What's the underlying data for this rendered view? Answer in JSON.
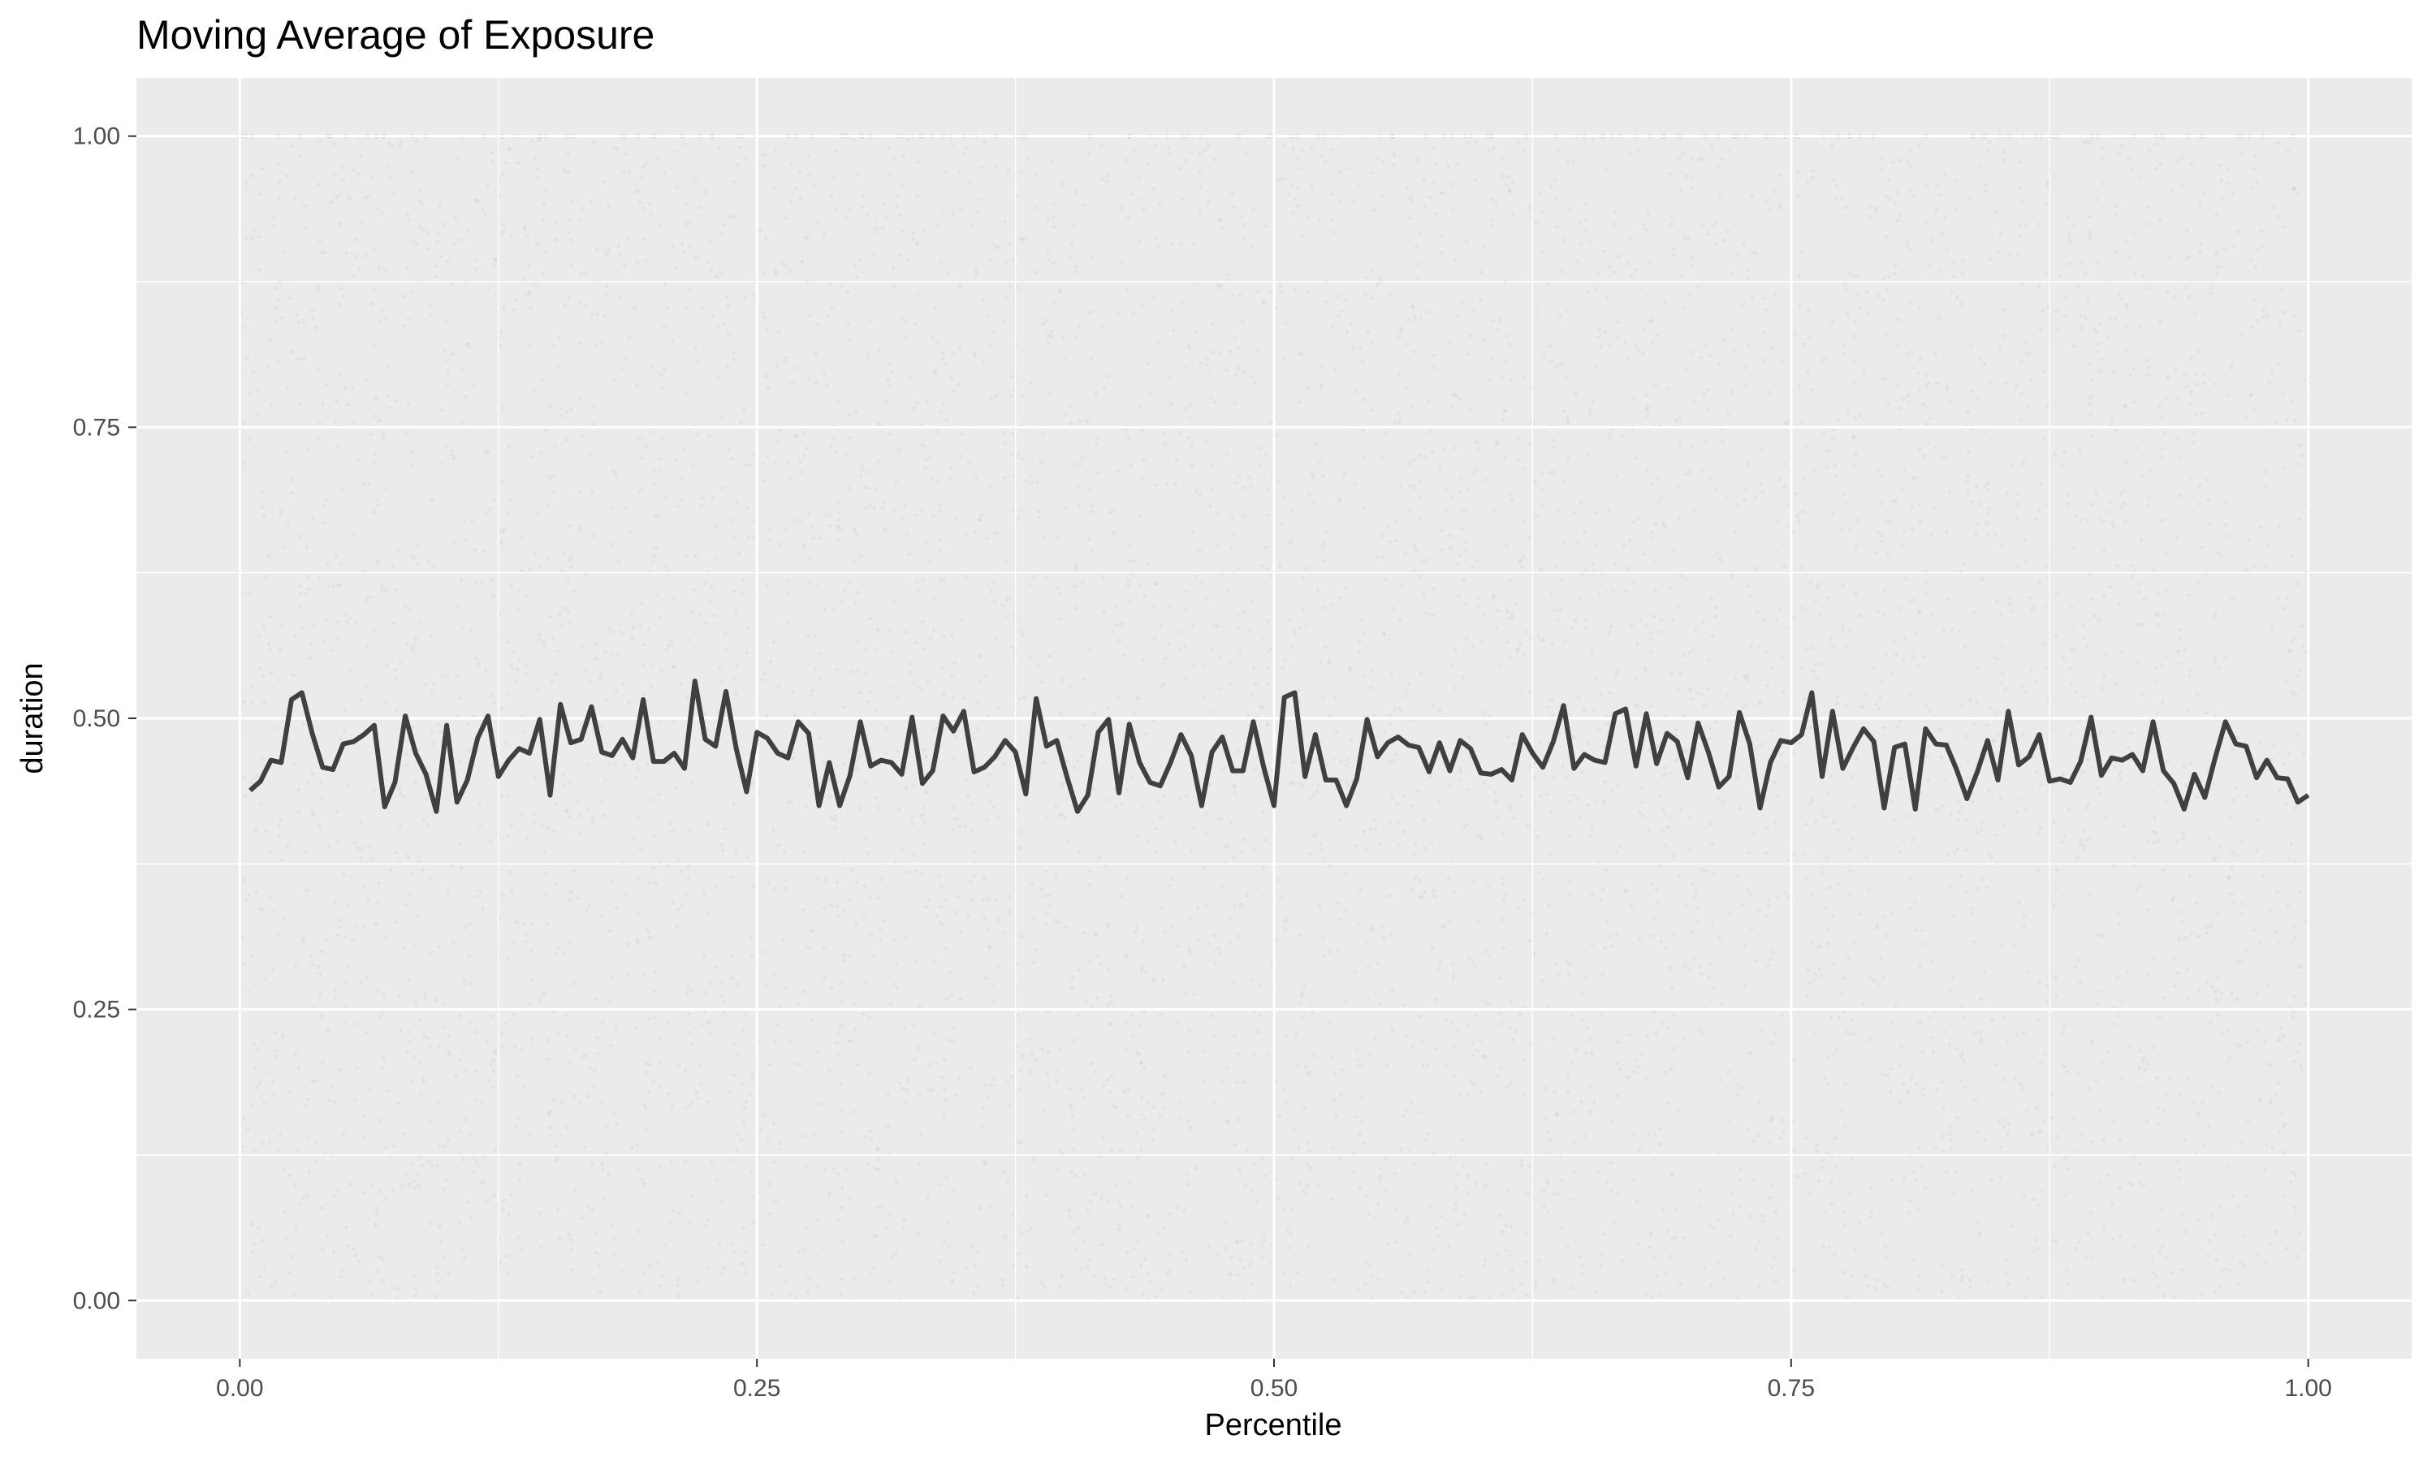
{
  "chart_data": {
    "type": "line",
    "title": "Moving Average of Exposure",
    "xlabel": "Percentile",
    "ylabel": "duration",
    "xlim": [
      -0.05,
      1.05
    ],
    "ylim": [
      -0.05,
      1.05
    ],
    "x_ticks": [
      0,
      0.25,
      0.5,
      0.75,
      1
    ],
    "x_tick_labels": [
      "0.00",
      "0.25",
      "0.50",
      "0.75",
      "1.00"
    ],
    "y_ticks": [
      0,
      0.25,
      0.5,
      0.75,
      1
    ],
    "y_tick_labels": [
      "0.00",
      "0.25",
      "0.50",
      "0.75",
      "1.00"
    ],
    "grid": true,
    "background": "#ebebeb",
    "grid_color": "#ffffff",
    "line_color": "#404040",
    "scatter_color": "#cccccc",
    "series": [
      {
        "x": [
          0.005,
          0.01,
          0.015,
          0.02,
          0.025,
          0.03,
          0.035,
          0.04,
          0.045,
          0.05,
          0.055,
          0.06,
          0.065,
          0.07,
          0.075,
          0.08,
          0.085,
          0.09,
          0.095,
          0.1,
          0.105,
          0.11,
          0.115,
          0.12,
          0.125,
          0.13,
          0.135,
          0.14,
          0.145,
          0.15,
          0.155,
          0.16,
          0.165,
          0.17,
          0.175,
          0.18,
          0.185,
          0.19,
          0.195,
          0.2,
          0.205,
          0.21,
          0.215,
          0.22,
          0.225,
          0.23,
          0.235,
          0.24,
          0.245,
          0.25,
          0.255,
          0.26,
          0.265,
          0.27,
          0.275,
          0.28,
          0.285,
          0.29,
          0.295,
          0.3,
          0.305,
          0.31,
          0.315,
          0.32,
          0.325,
          0.33,
          0.335,
          0.34,
          0.345,
          0.35,
          0.355,
          0.36,
          0.365,
          0.37,
          0.375,
          0.38,
          0.385,
          0.39,
          0.395,
          0.4,
          0.405,
          0.41,
          0.415,
          0.42,
          0.425,
          0.43,
          0.435,
          0.44,
          0.445,
          0.45,
          0.455,
          0.46,
          0.465,
          0.47,
          0.475,
          0.48,
          0.485,
          0.49,
          0.495,
          0.5,
          0.505,
          0.51,
          0.515,
          0.52,
          0.525,
          0.53,
          0.535,
          0.54,
          0.545,
          0.55,
          0.555,
          0.56,
          0.565,
          0.57,
          0.575,
          0.58,
          0.585,
          0.59,
          0.595,
          0.6,
          0.605,
          0.61,
          0.615,
          0.62,
          0.625,
          0.63,
          0.635,
          0.64,
          0.645,
          0.65,
          0.655,
          0.66,
          0.665,
          0.67,
          0.675,
          0.68,
          0.685,
          0.69,
          0.695,
          0.7,
          0.705,
          0.71,
          0.715,
          0.72,
          0.725,
          0.73,
          0.735,
          0.74,
          0.745,
          0.75,
          0.755,
          0.76,
          0.765,
          0.77,
          0.775,
          0.78,
          0.785,
          0.79,
          0.795,
          0.8,
          0.805,
          0.81,
          0.815,
          0.82,
          0.825,
          0.83,
          0.835,
          0.84,
          0.845,
          0.85,
          0.855,
          0.86,
          0.865,
          0.87,
          0.875,
          0.88,
          0.885,
          0.89,
          0.895,
          0.9,
          0.905,
          0.91,
          0.915,
          0.92,
          0.925,
          0.93,
          0.935,
          0.94,
          0.945,
          0.95,
          0.955,
          0.96,
          0.965,
          0.97,
          0.975,
          0.98,
          0.985,
          0.99,
          0.995,
          1.0
        ],
        "y": [
          0.438,
          0.446,
          0.464,
          0.462,
          0.516,
          0.522,
          0.487,
          0.458,
          0.456,
          0.478,
          0.48,
          0.486,
          0.494,
          0.424,
          0.445,
          0.502,
          0.47,
          0.452,
          0.42,
          0.494,
          0.428,
          0.447,
          0.483,
          0.502,
          0.45,
          0.464,
          0.474,
          0.47,
          0.499,
          0.434,
          0.512,
          0.479,
          0.482,
          0.51,
          0.471,
          0.468,
          0.482,
          0.466,
          0.516,
          0.463,
          0.463,
          0.47,
          0.457,
          0.532,
          0.482,
          0.476,
          0.523,
          0.474,
          0.437,
          0.488,
          0.483,
          0.47,
          0.466,
          0.497,
          0.487,
          0.425,
          0.462,
          0.425,
          0.451,
          0.497,
          0.459,
          0.464,
          0.462,
          0.452,
          0.501,
          0.444,
          0.455,
          0.502,
          0.489,
          0.506,
          0.454,
          0.458,
          0.467,
          0.481,
          0.471,
          0.435,
          0.517,
          0.476,
          0.481,
          0.449,
          0.42,
          0.434,
          0.488,
          0.499,
          0.436,
          0.495,
          0.462,
          0.445,
          0.442,
          0.462,
          0.486,
          0.468,
          0.425,
          0.471,
          0.484,
          0.455,
          0.455,
          0.497,
          0.458,
          0.425,
          0.518,
          0.522,
          0.45,
          0.486,
          0.447,
          0.447,
          0.425,
          0.448,
          0.499,
          0.467,
          0.479,
          0.484,
          0.477,
          0.475,
          0.454,
          0.479,
          0.455,
          0.481,
          0.474,
          0.453,
          0.452,
          0.456,
          0.447,
          0.486,
          0.47,
          0.458,
          0.48,
          0.511,
          0.457,
          0.469,
          0.464,
          0.462,
          0.504,
          0.508,
          0.459,
          0.504,
          0.461,
          0.487,
          0.48,
          0.449,
          0.496,
          0.471,
          0.441,
          0.45,
          0.505,
          0.478,
          0.423,
          0.462,
          0.481,
          0.479,
          0.486,
          0.522,
          0.45,
          0.506,
          0.457,
          0.475,
          0.491,
          0.48,
          0.423,
          0.475,
          0.478,
          0.422,
          0.491,
          0.478,
          0.477,
          0.456,
          0.431,
          0.454,
          0.481,
          0.447,
          0.506,
          0.46,
          0.467,
          0.486,
          0.446,
          0.448,
          0.445,
          0.463,
          0.501,
          0.451,
          0.466,
          0.464,
          0.469,
          0.455,
          0.497,
          0.455,
          0.444,
          0.422,
          0.452,
          0.432,
          0.466,
          0.497,
          0.478,
          0.476,
          0.449,
          0.464,
          0.449,
          0.448,
          0.428,
          0.434
        ]
      }
    ]
  }
}
